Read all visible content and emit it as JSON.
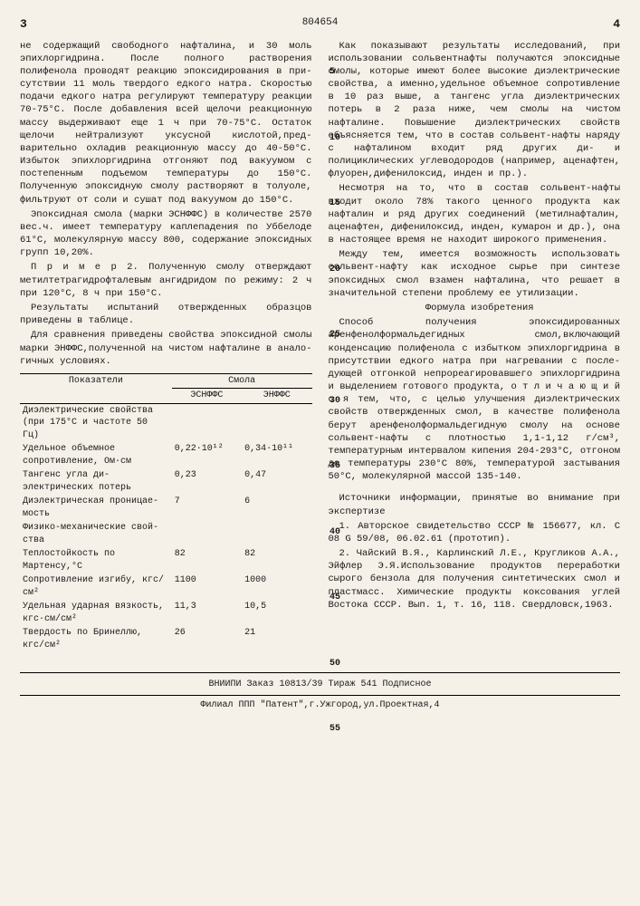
{
  "header": {
    "page_left": "3",
    "doc_number": "804654",
    "page_right": "4"
  },
  "line_numbers": [
    "5",
    "10",
    "15",
    "20",
    "25",
    "30",
    "35",
    "40",
    "45",
    "50",
    "55"
  ],
  "left_col": {
    "p1": "не содержащий свободного нафталина, и 30 моль эпихлоргидрина. После пол­ного растворения полифенола прово­дят реакцию эпоксидирования в при­сутствии 11 моль твердого едкого натра. Скоростью подачи едкого натра регулируют температуру реакции 70-75°С. После добавления всей щелочи реакционную массу выдерживают еще 1 ч при 70-75°С. Остаток щелочи нейтрализуют уксусной кислотой,пред­варительно охладив реакционную массу до 40-50°С. Избыток эпихлоргидрина отгоняют под вакуумом с постепен­ным подъемом температуры до 150°С. Полученную эпоксидную смолу раство­ряют в толуоле, фильтруют от соли и сушат под вакуумом до 150°С.",
    "p2": "Эпоксидная смола (марки ЭСНФФС) в количестве 2570 вес.ч. имеет тем­пературу каплепадения по Уббелоде 61°С, молекулярную массу 800, содер­жание эпоксидных групп 10,20%.",
    "p3": "П р и м е р  2. Полученную смолу отверждают метилтетрагидрофталевым ангидридом по режиму: 2 ч при 120°С, 8 ч при 150°С.",
    "p4": "Результаты испытаний отвержденных образцов приведены в таблице.",
    "p5": "Для сравнения приведены свойства эпоксидной смолы марки ЭНФФС,полу­ченной на чистом нафталине в анало­гичных условиях."
  },
  "table": {
    "col_header_main": "Показатели",
    "col_header_group": "Смола",
    "col_a": "ЭСНФФС",
    "col_b": "ЭНФФС",
    "rows": [
      {
        "label": "Диэлектрические свойства (при 175°С и часто­те 50 Гц)",
        "a": "",
        "b": ""
      },
      {
        "label": "Удельное объем­ное сопротивле­ние, Ом·см",
        "a": "0,22·10¹²",
        "b": "0,34·10¹¹"
      },
      {
        "label": "Тангенс угла ди­электрических потерь",
        "a": "0,23",
        "b": "0,47"
      },
      {
        "label": "Диэлектричес­кая проницае­мость",
        "a": "7",
        "b": "6"
      },
      {
        "label": "Физико-механи­ческие свой­ства",
        "a": "",
        "b": ""
      },
      {
        "label": "Теплостойкость по Мартенсу,°С",
        "a": "82",
        "b": "82"
      },
      {
        "label": "Сопротивление изгибу, кгс/см²",
        "a": "1100",
        "b": "1000"
      },
      {
        "label": "Удельная удар­ная вязкость, кгс·см/см²",
        "a": "11,3",
        "b": "10,5"
      },
      {
        "label": "Твердость по Бринеллю, кгс/см²",
        "a": "26",
        "b": "21"
      }
    ]
  },
  "right_col": {
    "p1": "Как показывают результаты иссле­дований, при использовании сольвент­нафты получаются эпоксидные смолы, которые имеют более высокие диэлек­трические свойства, а именно,удель­ное объемное сопротивление в 10 раз выше, а тангенс угла диэлектричес­ких потерь в 2 раза ниже, чем смо­лы на чистом нафталине. Повышение диэлектрических свойств объясняется тем, что в состав сольвент-нафты на­ряду с нафталином входит ряд других ди- и полициклических углеводородов (например, аценафтен, флуорен,ди­фенилоксид, инден и пр.).",
    "p2": "Несмотря на то, что в состав сольвент-нафты входит около 78% та­кого ценного продукта как нафталин и ряд других соединений (метилнаф­талин, аценафтен, дифенилоксид, ин­ден, кумарон и др.), она в настоящее время не находит широкого примене­ния.",
    "p3": "Между тем, имеется возможность использовать сольвент-нафту как исходное сырье при синтезе эпоксид­ных смол взамен нафталина, что реша­ет в значительной степени проблему ее утилизации.",
    "formula_title": "Формула  изобретения",
    "p4": "Способ получения эпоксидированных аренфенолформальдегидных смол,вклю­чающий конденсацию полифенола с из­бытком эпихлоргидрина в присутствии едкого натра при нагревании с после­дующей отгонкой непрореагировавшего эпихлоргидрина и выделением готового продукта, о т л и ч а ю щ и й с я тем, что, с целью улучшения диэлек­трических свойств отвержденных смол, в качестве полифенола берут арен­фенолформальдегидную смолу на основе сольвент-нафты с плотностью 1,1-1,12 г/см³, температурным интервалом кипения 204-293°С, отгоном до тем­пературы 230°С 80%, температурой застывания 50°С, молекулярной мас­сой 135-140.",
    "sources_title": "Источники информации, принятые во внимание при экспертизе",
    "s1": "1. Авторское свидетельство СССР № 156677, кл. С 08 G  59/08, 06.02.61 (прототип).",
    "s2": "2. Чайский В.Я., Карлинский Л.Е., Кругликов А.А., Эйфлер Э.Я.Использо­вание продуктов переработки сырого бензола для получения синтетических смол и пластмасс. Химические продук­ты коксования углей Востока СССР. Вып. 1, т. 16, 118. Свердловск,1963."
  },
  "footer": {
    "line1": "ВНИИПИ  Заказ 10813/39  Тираж 541  Подписное",
    "line2": "Филиал ППП \"Патент\",г.Ужгород,ул.Проектная,4"
  }
}
